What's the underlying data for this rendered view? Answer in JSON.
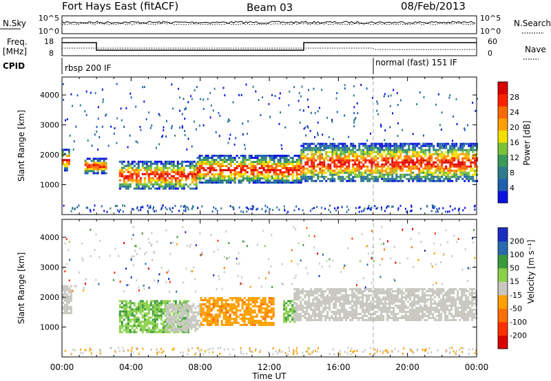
{
  "header": {
    "title": "Fort Hays East (fitACF)",
    "beam": "Beam 03",
    "date": "08/Feb/2013"
  },
  "top_panels": {
    "nsky_label": "N.Sky",
    "nsearch_label": "N.Search",
    "freq_label_line1": "Freq.",
    "freq_label_line2": "[MHz]",
    "nave_label": "Nave",
    "cpid_label": "CPID",
    "nsky_ticks": [
      "10^5",
      "10^0"
    ],
    "nsearch_ticks": [
      "10^5",
      "10^0"
    ],
    "freq_ticks": [
      "18",
      "8"
    ],
    "nave_ticks": [
      "60",
      "0"
    ],
    "cpid_segments": [
      {
        "name": "rbsp 200 IF",
        "start_hour": 0
      },
      {
        "name": "normal (fast) 151 IF",
        "start_hour": 18
      }
    ]
  },
  "chart_data": [
    {
      "type": "heatmap",
      "panel": "power",
      "xlabel": "",
      "ylabel": "Slant Range [km]",
      "xlim": [
        0,
        24
      ],
      "ylim": [
        0,
        4600
      ],
      "yticks": [
        "1000",
        "2000",
        "3000",
        "4000"
      ],
      "colorbar_label": "Power [dB]",
      "colorbar_ticks": [
        "4",
        "8",
        "12",
        "16",
        "20",
        "24",
        "28"
      ],
      "colorbar_colors": [
        "#0a12e0",
        "#1f5fb0",
        "#2f7a8a",
        "#3a9a5a",
        "#7ac23a",
        "#f2e000",
        "#ffa000",
        "#ff6a00",
        "#ff2000",
        "#d80000"
      ],
      "echo_regions": [
        {
          "t_start": 0.0,
          "t_end": 0.4,
          "r_min": 1500,
          "r_max": 2200
        },
        {
          "t_start": 1.3,
          "t_end": 2.5,
          "r_min": 1400,
          "r_max": 1900
        },
        {
          "t_start": 3.3,
          "t_end": 7.8,
          "r_min": 850,
          "r_max": 1800
        },
        {
          "t_start": 7.8,
          "t_end": 13.8,
          "r_min": 1050,
          "r_max": 2000
        },
        {
          "t_start": 13.8,
          "t_end": 24.0,
          "r_min": 1100,
          "r_max": 2400
        }
      ]
    },
    {
      "type": "heatmap",
      "panel": "velocity",
      "xlabel": "Time UT",
      "ylabel": "Slant Range [km]",
      "xlim": [
        0,
        24
      ],
      "ylim": [
        0,
        4600
      ],
      "xticks": [
        "00:00",
        "04:00",
        "08:00",
        "12:00",
        "16:00",
        "20:00",
        "00:00"
      ],
      "yticks": [
        "1000",
        "2000",
        "3000",
        "4000"
      ],
      "colorbar_label": "Velocity [m s⁻¹]",
      "colorbar_ticks": [
        "200",
        "100",
        "50",
        "15",
        "-15",
        "-50",
        "-100",
        "-200"
      ],
      "colorbar_colors": [
        "#1a2ec0",
        "#2a6ab0",
        "#3a9a3a",
        "#8ad04a",
        "#c8c8c0",
        "#ffa000",
        "#ff7000",
        "#ff3000",
        "#d80000"
      ],
      "echo_regions": [
        {
          "t_start": 0.0,
          "t_end": 0.5,
          "r_min": 1500,
          "r_max": 2400,
          "velocity": 0
        },
        {
          "t_start": 3.3,
          "t_end": 7.3,
          "r_min": 850,
          "r_max": 1900,
          "velocity": 40
        },
        {
          "t_start": 6.0,
          "t_end": 8.0,
          "r_min": 850,
          "r_max": 1800,
          "velocity": 0
        },
        {
          "t_start": 8.0,
          "t_end": 12.2,
          "r_min": 1050,
          "r_max": 2000,
          "velocity": -40
        },
        {
          "t_start": 12.8,
          "t_end": 13.4,
          "r_min": 1200,
          "r_max": 1900,
          "velocity": 30
        },
        {
          "t_start": 13.4,
          "t_end": 24.0,
          "r_min": 1200,
          "r_max": 2300,
          "velocity": 0
        }
      ]
    }
  ]
}
